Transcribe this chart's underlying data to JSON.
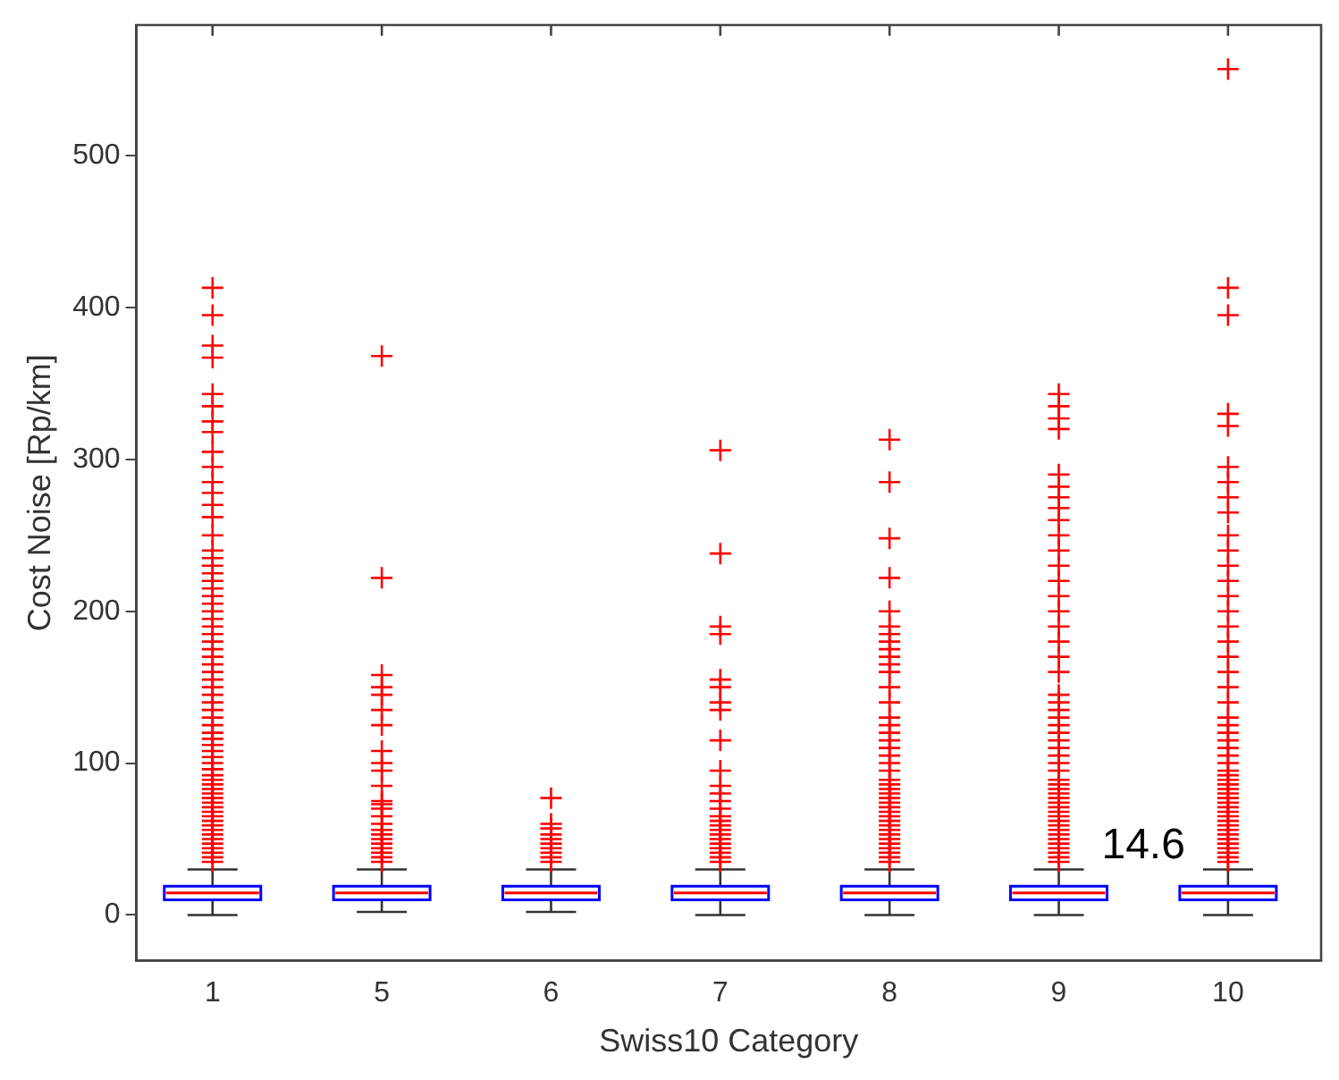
{
  "chart_data": {
    "type": "box",
    "xlabel": "Swiss10 Category",
    "ylabel": "Cost Noise [Rp/km]",
    "categories": [
      "1",
      "5",
      "6",
      "7",
      "8",
      "9",
      "10"
    ],
    "ylim": [
      -30,
      586
    ],
    "yticks": [
      0,
      100,
      200,
      300,
      400,
      500
    ],
    "grid": false,
    "marker": "cross",
    "annotations": [
      "14.6"
    ],
    "series": [
      {
        "color": "#0000ff",
        "boxes": [
          {
            "low": 0,
            "q1": 10,
            "median": 14.6,
            "q3": 19,
            "high": 30,
            "outliers": [
              35,
              38,
              41,
              44,
              47,
              50,
              53,
              56,
              59,
              62,
              65,
              68,
              71,
              74,
              77,
              80,
              83,
              86,
              89,
              92,
              96,
              100,
              104,
              108,
              112,
              116,
              120,
              125,
              130,
              135,
              140,
              145,
              150,
              155,
              160,
              165,
              170,
              175,
              180,
              185,
              190,
              195,
              200,
              205,
              210,
              215,
              220,
              225,
              230,
              235,
              240,
              250,
              262,
              270,
              278,
              285,
              295,
              305,
              318,
              325,
              335,
              343,
              367,
              375,
              395,
              413
            ]
          },
          {
            "low": 2,
            "q1": 10,
            "median": 14.6,
            "q3": 19,
            "high": 30,
            "outliers": [
              35,
              38,
              41,
              44,
              47,
              50,
              53,
              56,
              60,
              65,
              70,
              73,
              75,
              85,
              95,
              100,
              108,
              125,
              135,
              145,
              150,
              158,
              222,
              368
            ]
          },
          {
            "low": 2,
            "q1": 10,
            "median": 14.6,
            "q3": 19,
            "high": 30,
            "outliers": [
              35,
              38,
              41,
              44,
              47,
              50,
              53,
              57,
              60,
              77
            ]
          },
          {
            "low": 0,
            "q1": 10,
            "median": 14.6,
            "q3": 19,
            "high": 30,
            "outliers": [
              35,
              38,
              41,
              44,
              47,
              50,
              53,
              56,
              59,
              62,
              65,
              70,
              75,
              80,
              85,
              95,
              115,
              135,
              140,
              150,
              155,
              185,
              190,
              238,
              306
            ]
          },
          {
            "low": 0,
            "q1": 10,
            "median": 14.6,
            "q3": 19,
            "high": 30,
            "outliers": [
              35,
              38,
              41,
              44,
              47,
              50,
              53,
              56,
              59,
              62,
              65,
              68,
              71,
              74,
              77,
              80,
              83,
              86,
              89,
              95,
              100,
              105,
              110,
              115,
              120,
              125,
              130,
              140,
              150,
              160,
              165,
              170,
              175,
              180,
              185,
              190,
              200,
              222,
              248,
              285,
              313
            ]
          },
          {
            "low": 0,
            "q1": 10,
            "median": 14.6,
            "q3": 19,
            "high": 30,
            "outliers": [
              35,
              38,
              41,
              44,
              47,
              50,
              53,
              56,
              59,
              62,
              65,
              68,
              71,
              74,
              77,
              80,
              83,
              86,
              89,
              95,
              100,
              105,
              110,
              115,
              120,
              125,
              130,
              135,
              140,
              145,
              160,
              170,
              180,
              190,
              200,
              210,
              220,
              230,
              240,
              250,
              260,
              268,
              275,
              282,
              290,
              320,
              327,
              335,
              343
            ]
          },
          {
            "low": 0,
            "q1": 10,
            "median": 14.6,
            "q3": 19,
            "high": 30,
            "outliers": [
              35,
              38,
              41,
              44,
              47,
              50,
              53,
              56,
              59,
              62,
              65,
              68,
              71,
              74,
              77,
              80,
              83,
              86,
              89,
              92,
              95,
              100,
              105,
              110,
              115,
              120,
              125,
              130,
              140,
              150,
              160,
              170,
              180,
              190,
              200,
              210,
              220,
              230,
              240,
              250,
              265,
              275,
              285,
              295,
              322,
              330,
              395,
              413,
              557
            ]
          }
        ]
      }
    ]
  }
}
